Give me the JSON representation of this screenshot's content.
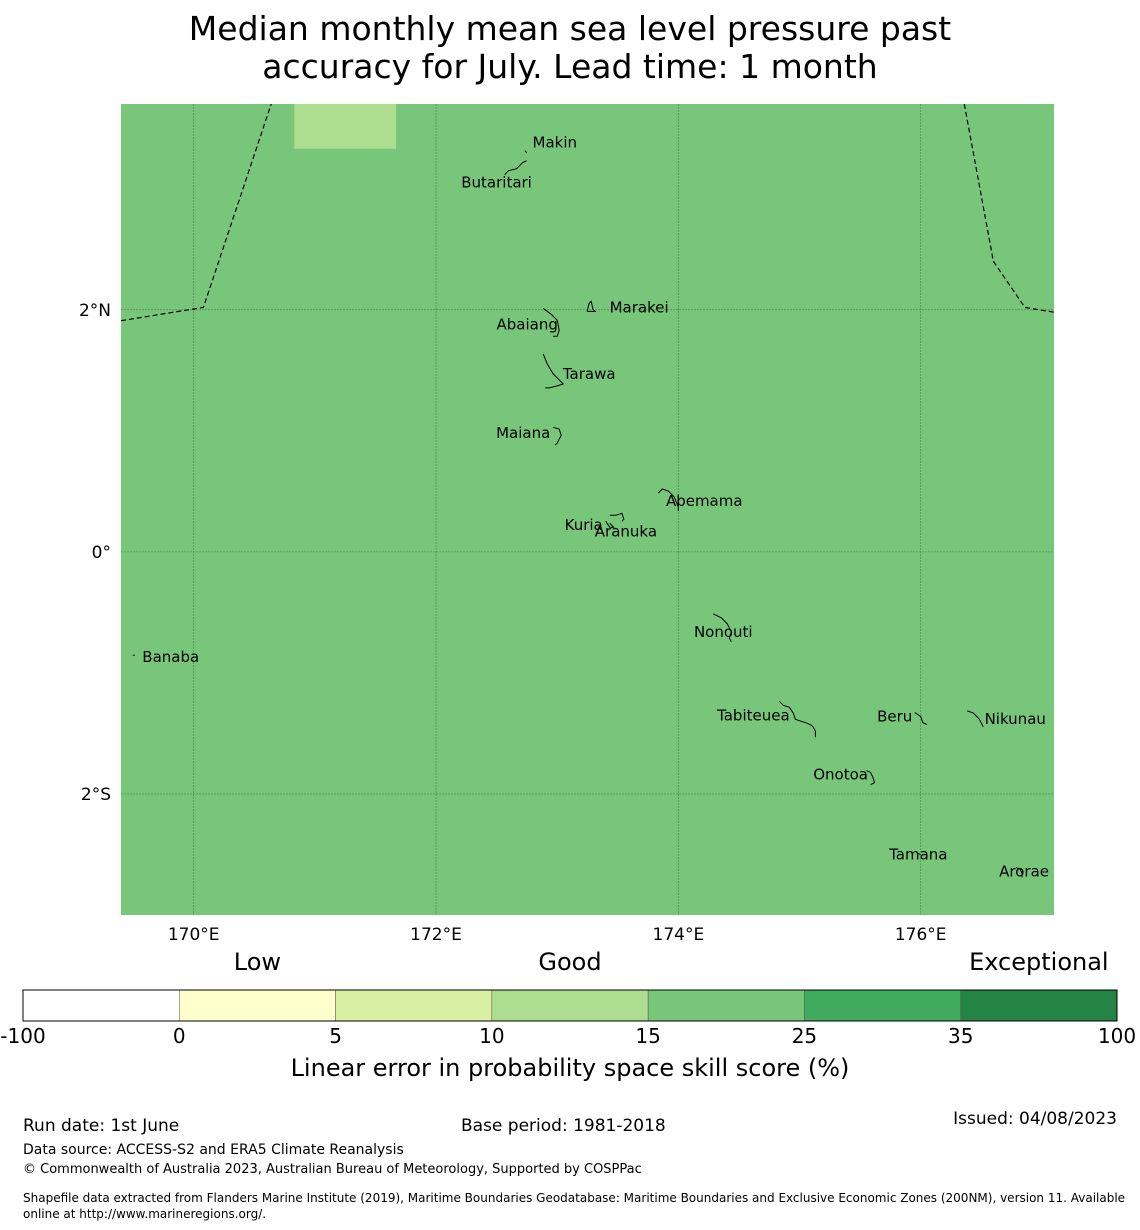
{
  "title_line1": "Median monthly mean sea level pressure past",
  "title_line2": "accuracy for July. Lead time: 1 month",
  "map": {
    "lon_range": [
      169.4,
      177.1
    ],
    "lat_range": [
      -3.0,
      3.7
    ],
    "base_color": "#78c679",
    "highlight_color": "#addd8e",
    "highlight_cell": {
      "lon": [
        170.83,
        171.67
      ],
      "lat": [
        3.33,
        3.7
      ]
    },
    "lon_ticks": [
      170,
      172,
      174,
      176
    ],
    "lon_tick_labels": [
      "170°E",
      "172°E",
      "174°E",
      "176°E"
    ],
    "lat_ticks": [
      2,
      0,
      -2
    ],
    "lat_tick_labels": [
      "2°N",
      "0°",
      "2°S"
    ],
    "islands": [
      {
        "name": "Makin",
        "lon": 172.98,
        "lat": 3.38
      },
      {
        "name": "Butaritari",
        "lon": 172.78,
        "lat": 3.05
      },
      {
        "name": "Marakei",
        "lon": 173.28,
        "lat": 2.02
      },
      {
        "name": "Abaiang",
        "lon": 173.0,
        "lat": 1.88
      },
      {
        "name": "Tarawa",
        "lon": 173.0,
        "lat": 1.47
      },
      {
        "name": "Maiana",
        "lon": 173.0,
        "lat": 0.98
      },
      {
        "name": "Abemama",
        "lon": 173.9,
        "lat": 0.42
      },
      {
        "name": "Kuria",
        "lon": 173.4,
        "lat": 0.22
      },
      {
        "name": "Aranuka",
        "lon": 173.6,
        "lat": 0.17
      },
      {
        "name": "Nonouti",
        "lon": 174.42,
        "lat": -0.66
      },
      {
        "name": "Banaba",
        "lon": 169.53,
        "lat": -0.87
      },
      {
        "name": "Beru",
        "lon": 176.0,
        "lat": -1.36
      },
      {
        "name": "Nikunau",
        "lon": 176.45,
        "lat": -1.38
      },
      {
        "name": "Tabiteuea",
        "lon": 174.85,
        "lat": -1.35
      },
      {
        "name": "Onotoa",
        "lon": 175.57,
        "lat": -1.84
      },
      {
        "name": "Tamana",
        "lon": 175.98,
        "lat": -2.5
      },
      {
        "name": "Arorae",
        "lon": 176.82,
        "lat": -2.64
      }
    ],
    "eez_boundary_west": [
      [
        169.4,
        1.91
      ],
      [
        170.08,
        2.02
      ],
      [
        170.64,
        3.7
      ]
    ],
    "eez_boundary_east": [
      [
        176.36,
        3.7
      ],
      [
        176.6,
        2.4
      ],
      [
        176.86,
        2.02
      ],
      [
        177.1,
        1.98
      ]
    ]
  },
  "colorbar": {
    "categories": [
      {
        "label": "Low",
        "value": 2.5
      },
      {
        "label": "Good",
        "value": 12.5
      },
      {
        "label": "Exceptional",
        "value": 67.5
      }
    ],
    "bounds": [
      "-100",
      "0",
      "5",
      "10",
      "15",
      "25",
      "35",
      "100"
    ],
    "colors": [
      "#ffffff",
      "#ffffcc",
      "#d9f0a3",
      "#addd8e",
      "#78c679",
      "#41ab5d",
      "#238443"
    ],
    "label": "Linear error in probability space skill score (%)"
  },
  "footer": {
    "run_date": "Run date: 1st June",
    "base_period": "Base period: 1981-2018",
    "issued": "Issued: 04/08/2023",
    "data_source": "Data source: ACCESS-S2 and ERA5 Climate Reanalysis",
    "copyright": "© Commonwealth of Australia 2023, Australian Bureau of Meteorology, Supported by COSPPac",
    "shapefile_line1": "Shapefile data extracted from Flanders Marine Institute (2019), Maritime Boundaries Geodatabase: Maritime Boundaries and Exclusive Economic Zones (200NM), version 11. Available",
    "shapefile_line2": "online at http://www.marineregions.org/."
  }
}
